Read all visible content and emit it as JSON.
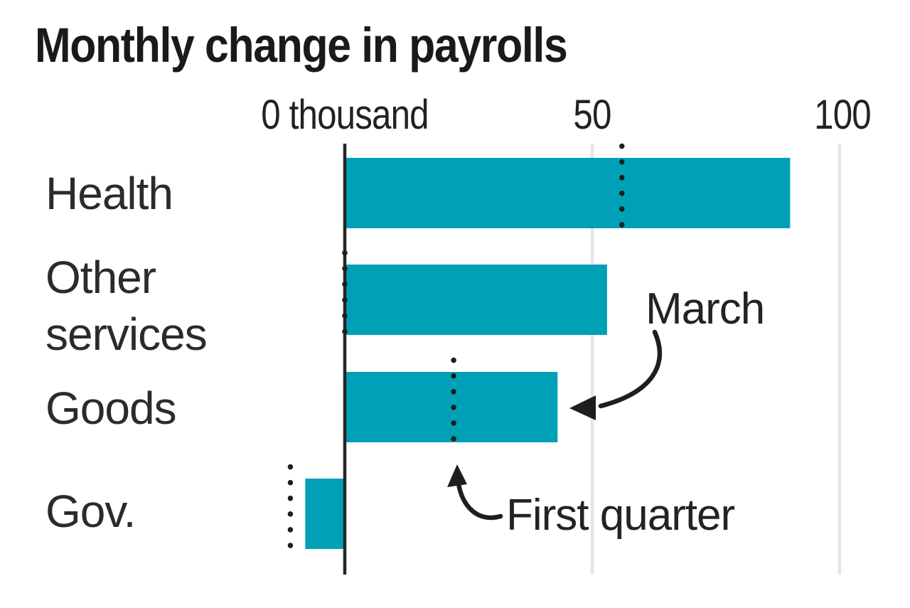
{
  "title": "Monthly change in payrolls",
  "chart_data": {
    "type": "bar",
    "orientation": "horizontal",
    "title": "Monthly change in payrolls",
    "x_axis": {
      "unit": "thousand",
      "ticks": [
        {
          "value": 0,
          "label": "0 thousand"
        },
        {
          "value": 50,
          "label": "50"
        },
        {
          "value": 100,
          "label": "100"
        }
      ],
      "range": [
        -15,
        113
      ],
      "grid": "vertical"
    },
    "categories": [
      "Health",
      "Other services",
      "Goods",
      "Gov."
    ],
    "categories_display": [
      "Health",
      "Other\nservices",
      "Goods",
      "Gov."
    ],
    "series": [
      {
        "name": "March",
        "style": "solid-bar",
        "values": [
          90,
          53,
          43,
          -8
        ]
      },
      {
        "name": "First quarter",
        "style": "dotted-marker-line",
        "values": [
          56,
          0,
          22,
          -11
        ]
      }
    ],
    "annotations": [
      {
        "text": "March",
        "arrow_target": "end of Goods March bar"
      },
      {
        "text": "First quarter",
        "arrow_target": "Goods first-quarter dotted marker"
      }
    ],
    "colors": {
      "bar": "#00a1b7",
      "marker_dots": "#1e1e1e",
      "gridline": "#e6e6e6",
      "axis": "#262626"
    }
  }
}
